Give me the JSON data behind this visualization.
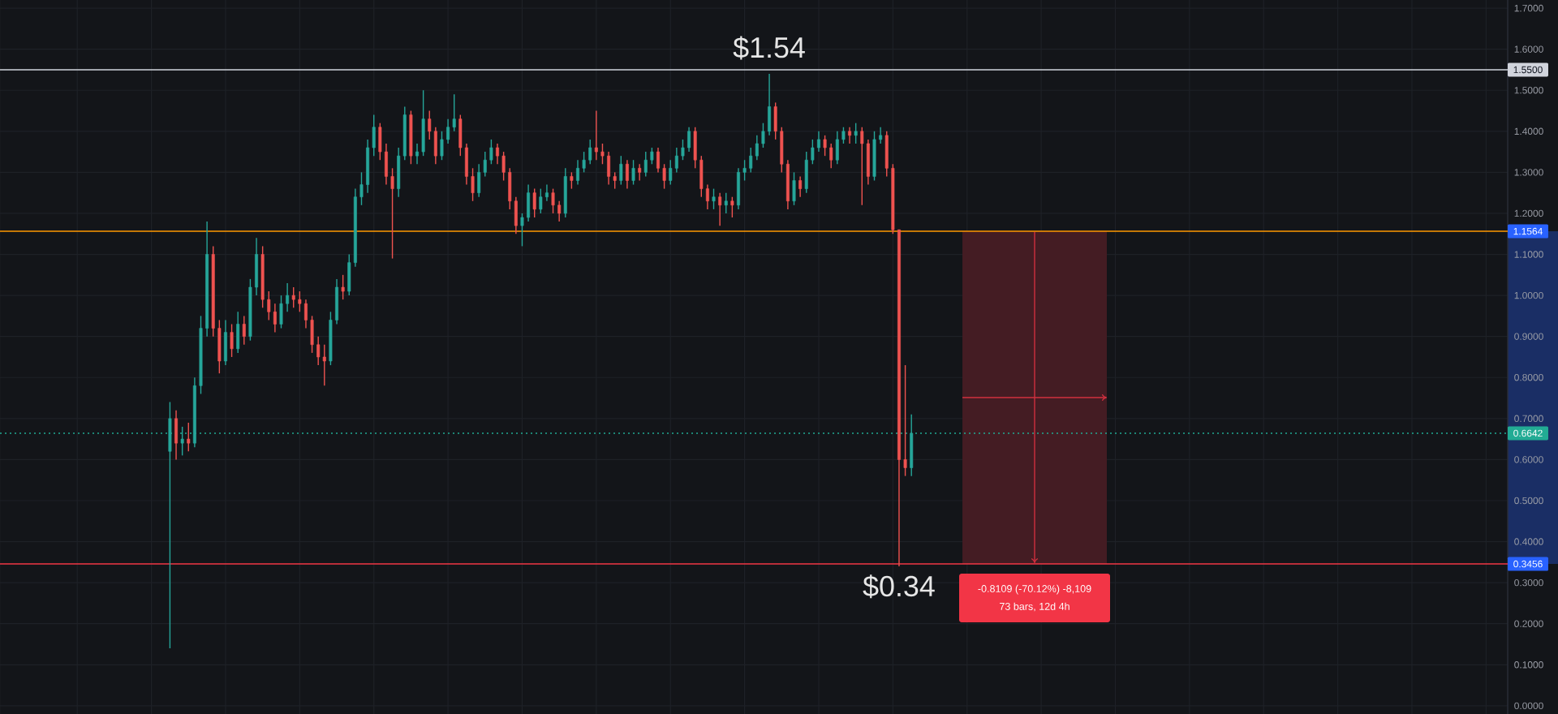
{
  "chart_data": {
    "type": "candlestick",
    "categories": [
      null,
      null,
      null,
      null,
      null,
      null,
      null,
      null,
      null,
      null,
      null,
      null,
      null,
      null,
      null,
      null,
      null,
      null,
      null,
      null,
      null,
      null,
      null,
      null,
      null,
      null,
      null,
      null,
      null,
      null,
      null,
      null,
      null,
      null,
      null,
      null,
      null,
      null,
      null,
      null,
      null,
      null,
      null,
      null,
      null,
      null,
      null,
      null,
      null,
      null,
      null,
      null,
      null,
      null,
      null,
      null,
      null,
      null,
      null,
      null,
      null,
      null,
      null,
      null,
      null,
      null,
      null,
      null,
      null,
      null,
      null,
      null,
      null,
      null,
      null,
      null,
      null,
      null,
      null,
      null,
      null,
      null,
      null,
      null,
      null,
      null,
      null,
      null,
      null,
      null,
      null,
      null,
      null,
      null,
      null,
      null,
      null,
      null,
      null,
      null,
      null,
      null,
      null,
      null,
      null,
      null,
      null,
      null,
      null,
      null,
      null,
      null,
      null,
      null,
      null,
      null,
      null,
      null,
      null,
      null,
      null,
      null,
      null,
      null,
      null,
      null,
      null,
      null,
      null,
      null,
      null,
      null,
      null,
      null,
      null,
      null,
      null,
      null,
      null,
      null,
      null,
      null,
      null,
      null,
      null,
      null,
      null,
      null,
      null,
      null,
      null,
      null,
      null,
      null,
      null,
      null,
      null,
      null,
      null,
      null,
      null,
      null,
      null,
      null,
      null,
      null,
      null,
      null,
      null,
      null,
      null,
      null,
      null,
      null,
      null,
      null,
      null,
      null,
      null,
      null,
      null,
      null,
      null,
      null,
      null,
      null,
      null,
      null,
      null,
      null,
      null,
      null,
      null,
      null,
      null,
      null,
      null,
      null,
      null,
      null,
      null,
      null,
      null,
      null,
      null,
      null,
      null,
      null,
      null,
      null,
      null,
      null,
      null,
      null,
      null,
      null,
      null,
      null,
      null,
      null,
      null,
      null,
      null,
      null,
      null,
      null,
      null,
      null,
      null,
      null,
      null,
      null,
      null,
      null,
      null,
      null,
      null,
      null,
      null,
      null,
      null,
      null,
      null,
      null
    ],
    "ohlc": [
      null,
      null,
      null,
      null,
      null,
      null,
      null,
      null,
      null,
      null,
      null,
      null,
      null,
      null,
      null,
      null,
      null,
      null,
      null,
      null,
      null,
      null,
      null,
      null,
      null,
      null,
      null,
      [
        0.62,
        0.74,
        0.14,
        0.7
      ],
      [
        0.7,
        0.72,
        0.6,
        0.64
      ],
      [
        0.64,
        0.68,
        0.61,
        0.65
      ],
      [
        0.65,
        0.69,
        0.62,
        0.64
      ],
      [
        0.64,
        0.8,
        0.63,
        0.78
      ],
      [
        0.78,
        0.95,
        0.76,
        0.92
      ],
      [
        0.92,
        1.18,
        0.9,
        1.1
      ],
      [
        1.1,
        1.12,
        0.9,
        0.92
      ],
      [
        0.92,
        0.94,
        0.81,
        0.84
      ],
      [
        0.84,
        0.94,
        0.83,
        0.91
      ],
      [
        0.91,
        0.93,
        0.85,
        0.87
      ],
      [
        0.87,
        0.96,
        0.86,
        0.93
      ],
      [
        0.93,
        0.95,
        0.88,
        0.9
      ],
      [
        0.9,
        1.04,
        0.89,
        1.02
      ],
      [
        1.02,
        1.14,
        1.0,
        1.1
      ],
      [
        1.1,
        1.12,
        0.97,
        0.99
      ],
      [
        0.99,
        1.01,
        0.94,
        0.96
      ],
      [
        0.96,
        0.98,
        0.91,
        0.93
      ],
      [
        0.93,
        1.0,
        0.92,
        0.98
      ],
      [
        0.98,
        1.03,
        0.96,
        1.0
      ],
      [
        1.0,
        1.02,
        0.97,
        0.99
      ],
      [
        0.99,
        1.01,
        0.96,
        0.98
      ],
      [
        0.98,
        0.99,
        0.92,
        0.94
      ],
      [
        0.94,
        0.95,
        0.86,
        0.88
      ],
      [
        0.88,
        0.9,
        0.83,
        0.85
      ],
      [
        0.85,
        0.88,
        0.78,
        0.84
      ],
      [
        0.84,
        0.96,
        0.83,
        0.94
      ],
      [
        0.94,
        1.04,
        0.93,
        1.02
      ],
      [
        1.02,
        1.05,
        0.99,
        1.01
      ],
      [
        1.01,
        1.1,
        1.0,
        1.08
      ],
      [
        1.08,
        1.26,
        1.07,
        1.24
      ],
      [
        1.24,
        1.3,
        1.22,
        1.27
      ],
      [
        1.27,
        1.38,
        1.25,
        1.36
      ],
      [
        1.36,
        1.44,
        1.34,
        1.41
      ],
      [
        1.41,
        1.42,
        1.33,
        1.35
      ],
      [
        1.35,
        1.37,
        1.27,
        1.29
      ],
      [
        1.29,
        1.31,
        1.09,
        1.26
      ],
      [
        1.26,
        1.36,
        1.24,
        1.34
      ],
      [
        1.34,
        1.46,
        1.33,
        1.44
      ],
      [
        1.44,
        1.45,
        1.32,
        1.34
      ],
      [
        1.34,
        1.37,
        1.32,
        1.35
      ],
      [
        1.35,
        1.5,
        1.34,
        1.43
      ],
      [
        1.43,
        1.45,
        1.38,
        1.4
      ],
      [
        1.4,
        1.41,
        1.32,
        1.34
      ],
      [
        1.34,
        1.4,
        1.33,
        1.38
      ],
      [
        1.38,
        1.43,
        1.37,
        1.41
      ],
      [
        1.41,
        1.49,
        1.4,
        1.43
      ],
      [
        1.43,
        1.44,
        1.34,
        1.36
      ],
      [
        1.36,
        1.37,
        1.27,
        1.29
      ],
      [
        1.29,
        1.31,
        1.23,
        1.25
      ],
      [
        1.25,
        1.32,
        1.24,
        1.3
      ],
      [
        1.3,
        1.35,
        1.29,
        1.33
      ],
      [
        1.33,
        1.38,
        1.32,
        1.36
      ],
      [
        1.36,
        1.37,
        1.32,
        1.34
      ],
      [
        1.34,
        1.35,
        1.28,
        1.3
      ],
      [
        1.3,
        1.31,
        1.21,
        1.23
      ],
      [
        1.23,
        1.24,
        1.15,
        1.17
      ],
      [
        1.17,
        1.2,
        1.12,
        1.19
      ],
      [
        1.19,
        1.27,
        1.18,
        1.25
      ],
      [
        1.25,
        1.26,
        1.19,
        1.21
      ],
      [
        1.21,
        1.26,
        1.2,
        1.24
      ],
      [
        1.24,
        1.27,
        1.23,
        1.25
      ],
      [
        1.25,
        1.26,
        1.2,
        1.22
      ],
      [
        1.22,
        1.23,
        1.18,
        1.2
      ],
      [
        1.2,
        1.31,
        1.19,
        1.29
      ],
      [
        1.29,
        1.3,
        1.26,
        1.28
      ],
      [
        1.28,
        1.33,
        1.27,
        1.31
      ],
      [
        1.31,
        1.35,
        1.3,
        1.33
      ],
      [
        1.33,
        1.38,
        1.32,
        1.36
      ],
      [
        1.36,
        1.45,
        1.33,
        1.35
      ],
      [
        1.35,
        1.37,
        1.32,
        1.34
      ],
      [
        1.34,
        1.35,
        1.27,
        1.29
      ],
      [
        1.29,
        1.3,
        1.26,
        1.28
      ],
      [
        1.28,
        1.34,
        1.27,
        1.32
      ],
      [
        1.32,
        1.33,
        1.26,
        1.28
      ],
      [
        1.28,
        1.33,
        1.27,
        1.31
      ],
      [
        1.31,
        1.32,
        1.28,
        1.3
      ],
      [
        1.3,
        1.35,
        1.29,
        1.33
      ],
      [
        1.33,
        1.36,
        1.32,
        1.35
      ],
      [
        1.35,
        1.36,
        1.3,
        1.31
      ],
      [
        1.31,
        1.32,
        1.26,
        1.28
      ],
      [
        1.28,
        1.33,
        1.27,
        1.31
      ],
      [
        1.31,
        1.36,
        1.3,
        1.34
      ],
      [
        1.34,
        1.38,
        1.33,
        1.36
      ],
      [
        1.36,
        1.41,
        1.35,
        1.4
      ],
      [
        1.4,
        1.41,
        1.31,
        1.33
      ],
      [
        1.33,
        1.34,
        1.24,
        1.26
      ],
      [
        1.26,
        1.27,
        1.21,
        1.23
      ],
      [
        1.23,
        1.26,
        1.21,
        1.24
      ],
      [
        1.24,
        1.25,
        1.17,
        1.22
      ],
      [
        1.22,
        1.25,
        1.2,
        1.23
      ],
      [
        1.23,
        1.24,
        1.19,
        1.22
      ],
      [
        1.22,
        1.31,
        1.21,
        1.3
      ],
      [
        1.3,
        1.33,
        1.28,
        1.31
      ],
      [
        1.31,
        1.36,
        1.3,
        1.34
      ],
      [
        1.34,
        1.39,
        1.33,
        1.37
      ],
      [
        1.37,
        1.42,
        1.36,
        1.4
      ],
      [
        1.4,
        1.54,
        1.39,
        1.46
      ],
      [
        1.46,
        1.47,
        1.38,
        1.4
      ],
      [
        1.4,
        1.41,
        1.3,
        1.32
      ],
      [
        1.32,
        1.33,
        1.21,
        1.23
      ],
      [
        1.23,
        1.3,
        1.22,
        1.28
      ],
      [
        1.28,
        1.29,
        1.24,
        1.26
      ],
      [
        1.26,
        1.35,
        1.25,
        1.33
      ],
      [
        1.33,
        1.38,
        1.32,
        1.36
      ],
      [
        1.36,
        1.4,
        1.35,
        1.38
      ],
      [
        1.38,
        1.39,
        1.34,
        1.36
      ],
      [
        1.36,
        1.37,
        1.31,
        1.33
      ],
      [
        1.33,
        1.4,
        1.32,
        1.38
      ],
      [
        1.38,
        1.41,
        1.37,
        1.4
      ],
      [
        1.4,
        1.41,
        1.37,
        1.39
      ],
      [
        1.39,
        1.42,
        1.37,
        1.4
      ],
      [
        1.4,
        1.41,
        1.22,
        1.37
      ],
      [
        1.37,
        1.38,
        1.27,
        1.29
      ],
      [
        1.29,
        1.4,
        1.28,
        1.38
      ],
      [
        1.38,
        1.41,
        1.37,
        1.39
      ],
      [
        1.39,
        1.4,
        1.29,
        1.31
      ],
      [
        1.31,
        1.32,
        1.15,
        1.16
      ],
      [
        1.16,
        1.16,
        0.34,
        0.6
      ],
      [
        0.6,
        0.83,
        0.56,
        0.58
      ],
      [
        0.58,
        0.71,
        0.56,
        0.6642
      ],
      null,
      null,
      null,
      null,
      null,
      null,
      null,
      null,
      null,
      null,
      null,
      null,
      null,
      null,
      null,
      null,
      null,
      null,
      null,
      null,
      null,
      null,
      null,
      null,
      null,
      null,
      null,
      null,
      null,
      null,
      null,
      null,
      null,
      null,
      null,
      null,
      null,
      null,
      null,
      null,
      null,
      null,
      null,
      null,
      null,
      null,
      null,
      null,
      null,
      null,
      null,
      null,
      null,
      null,
      null,
      null,
      null,
      null,
      null,
      null,
      null,
      null,
      null,
      null,
      null,
      null,
      null,
      null,
      null,
      null,
      null,
      null,
      null,
      null,
      null,
      null,
      null,
      null,
      null,
      null,
      null,
      null,
      null,
      null,
      null,
      null,
      null,
      null,
      null,
      null,
      null,
      null,
      null,
      null,
      null,
      null
    ],
    "colors": [
      null,
      null,
      null,
      null,
      null,
      null,
      null,
      null,
      null,
      null,
      null,
      null,
      null,
      null,
      null,
      null,
      null,
      null,
      null,
      null,
      null,
      null,
      null,
      null,
      null,
      null,
      null,
      "#26a69a",
      "#ef5350",
      "#26a69a",
      "#ef5350",
      "#26a69a",
      "#26a69a",
      "#26a69a",
      "#ef5350",
      "#ef5350",
      "#26a69a",
      "#ef5350",
      "#26a69a",
      "#ef5350",
      "#26a69a",
      "#26a69a",
      "#ef5350",
      "#ef5350",
      "#ef5350",
      "#26a69a",
      "#26a69a",
      "#ef5350",
      "#ef5350",
      "#ef5350",
      "#ef5350",
      "#ef5350",
      "#ef5350",
      "#26a69a",
      "#26a69a",
      "#ef5350",
      "#26a69a",
      "#26a69a",
      "#26a69a",
      "#26a69a",
      "#26a69a",
      "#ef5350",
      "#ef5350",
      "#ef5350",
      "#26a69a",
      "#26a69a",
      "#ef5350",
      "#26a69a",
      "#26a69a",
      "#ef5350",
      "#ef5350",
      "#26a69a",
      "#26a69a",
      "#26a69a",
      "#ef5350",
      "#ef5350",
      "#ef5350",
      "#26a69a",
      "#26a69a",
      "#26a69a",
      "#ef5350",
      "#ef5350",
      "#ef5350",
      "#ef5350",
      "#26a69a",
      "#26a69a",
      "#ef5350",
      "#26a69a",
      "#26a69a",
      "#ef5350",
      "#ef5350",
      "#26a69a",
      "#ef5350",
      "#26a69a",
      "#26a69a",
      "#26a69a",
      "#ef5350",
      "#ef5350",
      "#ef5350",
      "#ef5350",
      "#26a69a",
      "#ef5350",
      "#26a69a",
      "#ef5350",
      "#26a69a",
      "#26a69a",
      "#ef5350",
      "#ef5350",
      "#26a69a",
      "#26a69a",
      "#26a69a",
      "#26a69a",
      "#ef5350",
      "#ef5350",
      "#ef5350",
      "#26a69a",
      "#ef5350",
      "#26a69a",
      "#ef5350",
      "#26a69a",
      "#26a69a",
      "#26a69a",
      "#26a69a",
      "#26a69a",
      "#26a69a",
      "#ef5350",
      "#ef5350",
      "#ef5350",
      "#26a69a",
      "#ef5350",
      "#26a69a",
      "#26a69a",
      "#26a69a",
      "#ef5350",
      "#ef5350",
      "#26a69a",
      "#26a69a",
      "#ef5350",
      "#26a69a",
      "#ef5350",
      "#ef5350",
      "#26a69a",
      "#26a69a",
      "#ef5350",
      "#ef5350",
      "#ef5350",
      "#ef5350",
      "#26a69a",
      null,
      null,
      null,
      null,
      null,
      null,
      null,
      null,
      null,
      null,
      null,
      null,
      null,
      null,
      null,
      null,
      null,
      null,
      null,
      null,
      null,
      null,
      null,
      null,
      null,
      null,
      null,
      null,
      null,
      null,
      null,
      null,
      null,
      null,
      null,
      null,
      null,
      null,
      null,
      null,
      null,
      null,
      null,
      null,
      null,
      null,
      null,
      null,
      null,
      null,
      null,
      null,
      null,
      null,
      null,
      null,
      null,
      null,
      null,
      null,
      null,
      null,
      null,
      null,
      null,
      null,
      null,
      null,
      null,
      null,
      null,
      null,
      null,
      null,
      null,
      null,
      null,
      null,
      null,
      null,
      null,
      null,
      null,
      null,
      null,
      null,
      null,
      null,
      null,
      null,
      null,
      null,
      null,
      null,
      null,
      null
    ],
    "ylim": [
      -0.02,
      1.72
    ],
    "yticks": [
      {
        "value": 0,
        "label": "0.0000"
      },
      {
        "value": 0.1,
        "label": "0.1000"
      },
      {
        "value": 0.2,
        "label": "0.2000"
      },
      {
        "value": 0.3,
        "label": "0.3000"
      },
      {
        "value": 0.4,
        "label": "0.4000"
      },
      {
        "value": 0.5,
        "label": "0.5000"
      },
      {
        "value": 0.6,
        "label": "0.6000"
      },
      {
        "value": 0.7,
        "label": "0.7000"
      },
      {
        "value": 0.8,
        "label": "0.8000"
      },
      {
        "value": 0.9,
        "label": "0.9000"
      },
      {
        "value": 1.0,
        "label": "1.0000"
      },
      {
        "value": 1.1,
        "label": "1.1000"
      },
      {
        "value": 1.2,
        "label": "1.2000"
      },
      {
        "value": 1.3,
        "label": "1.3000"
      },
      {
        "value": 1.4,
        "label": "1.4000"
      },
      {
        "value": 1.5,
        "label": "1.5000"
      },
      {
        "value": 1.6,
        "label": "1.6000"
      },
      {
        "value": 1.7,
        "label": "1.7000"
      }
    ],
    "tick_labels": "y",
    "grid": true,
    "ref_lines": [
      {
        "axis": "y",
        "value": 1.55,
        "label": "1.5500",
        "color": "#d1d4dc"
      },
      {
        "axis": "y",
        "value": 1.1564,
        "label": "1.1564",
        "color": "#ff9800"
      },
      {
        "axis": "y",
        "value": 0.6642,
        "label": "0.6642",
        "color": "#22ab94",
        "line_style": "dotted"
      },
      {
        "axis": "y",
        "value": 0.3456,
        "label": "0.3456",
        "color": "#f23645"
      }
    ],
    "bands": [
      {
        "axis": "y",
        "from": 0.3456,
        "to": 1.1564,
        "color": "#441c23"
      }
    ],
    "annotations": [
      {
        "text": "$1.54",
        "y": 1.54
      },
      {
        "text": "$0.34",
        "y": 0.34
      },
      "-0.8109 (-70.12%) -8,109",
      "73 bars, 12d 4h"
    ]
  }
}
